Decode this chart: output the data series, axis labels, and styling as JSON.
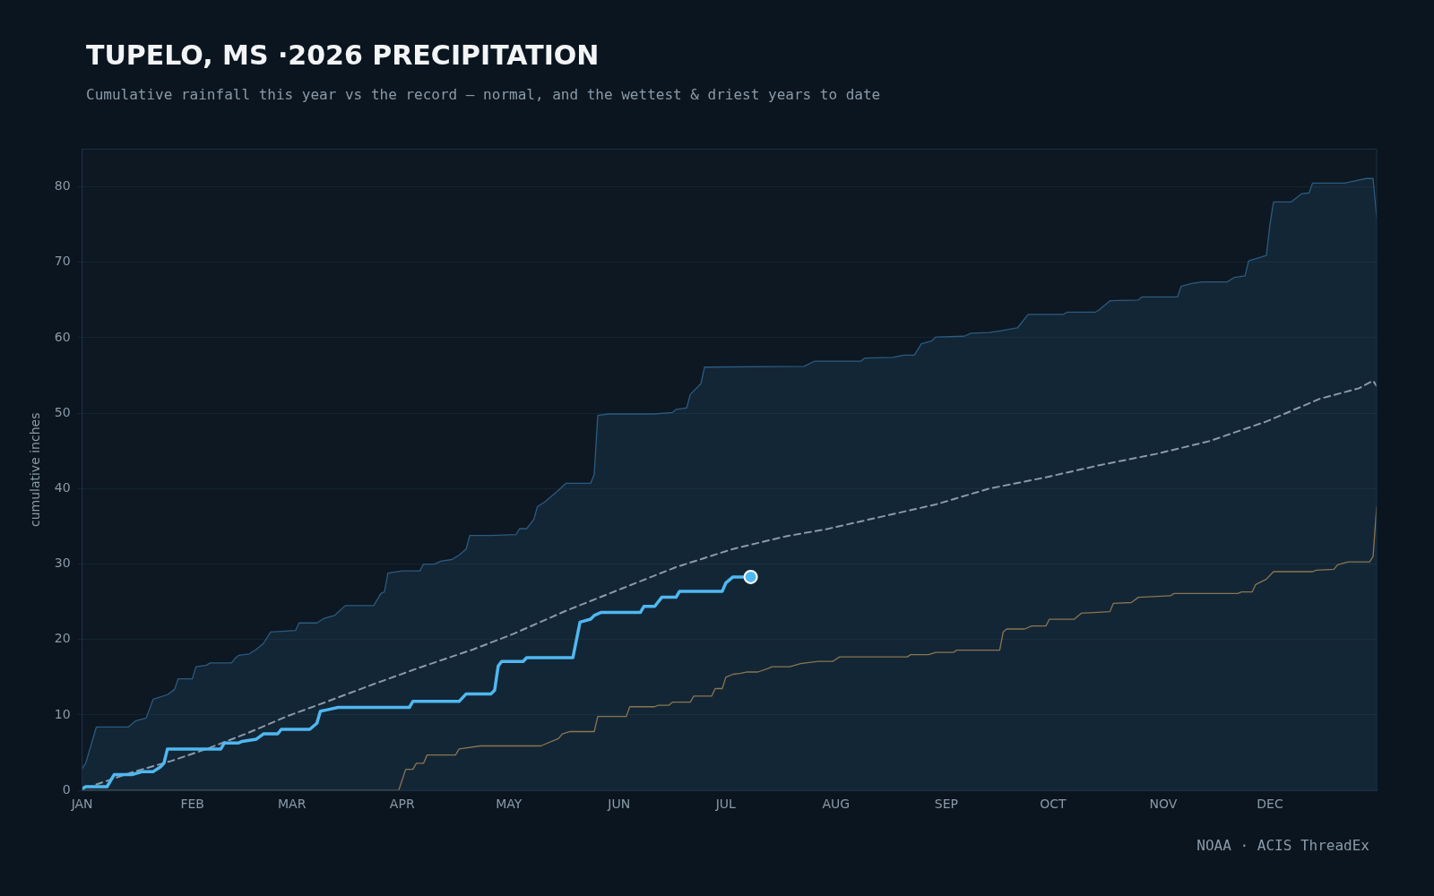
{
  "chart_data": {
    "type": "line",
    "title": "TUPELO, MS ·2026 PRECIPITATION",
    "subtitle": "Cumulative rainfall this year vs the record — normal, and the wettest & driest years to date",
    "ylabel": "cumulative inches",
    "annotations": [
      "NOAA · ACIS ThreadEx"
    ],
    "xlim": [
      "2026-01-01",
      "2026-12-31"
    ],
    "xticks": [
      {
        "value": "2026-01-01",
        "label": "JAN"
      },
      {
        "value": "2026-02-01",
        "label": "FEB"
      },
      {
        "value": "2026-03-01",
        "label": "MAR"
      },
      {
        "value": "2026-04-01",
        "label": "APR"
      },
      {
        "value": "2026-05-01",
        "label": "MAY"
      },
      {
        "value": "2026-06-01",
        "label": "JUN"
      },
      {
        "value": "2026-07-01",
        "label": "JUL"
      },
      {
        "value": "2026-08-01",
        "label": "AUG"
      },
      {
        "value": "2026-09-01",
        "label": "SEP"
      },
      {
        "value": "2026-10-01",
        "label": "OCT"
      },
      {
        "value": "2026-11-01",
        "label": "NOV"
      },
      {
        "value": "2026-12-01",
        "label": "DEC"
      }
    ],
    "ylim": [
      0,
      85
    ],
    "yticks": [
      0,
      10,
      20,
      30,
      40,
      50,
      60,
      70,
      80
    ],
    "grid": "y",
    "legend": false,
    "series": [
      {
        "type": "area",
        "color": "#2b5b80",
        "marker": "none",
        "x": [
          "2026-01-01",
          "2026-01-02",
          "2026-01-05",
          "2026-01-14",
          "2026-01-16",
          "2026-01-19",
          "2026-01-21",
          "2026-01-25",
          "2026-01-27",
          "2026-01-28",
          "2026-02-01",
          "2026-02-02",
          "2026-02-05",
          "2026-02-06",
          "2026-02-12",
          "2026-02-13",
          "2026-02-14",
          "2026-02-17",
          "2026-02-19",
          "2026-02-21",
          "2026-02-23",
          "2026-03-02",
          "2026-03-03",
          "2026-03-08",
          "2026-03-10",
          "2026-03-13",
          "2026-03-16",
          "2026-03-24",
          "2026-03-26",
          "2026-03-27",
          "2026-03-28",
          "2026-04-01",
          "2026-04-06",
          "2026-04-07",
          "2026-04-10",
          "2026-04-12",
          "2026-04-15",
          "2026-04-17",
          "2026-04-19",
          "2026-04-20",
          "2026-04-26",
          "2026-05-03",
          "2026-05-04",
          "2026-05-06",
          "2026-05-08",
          "2026-05-09",
          "2026-05-11",
          "2026-05-15",
          "2026-05-17",
          "2026-05-24",
          "2026-05-25",
          "2026-05-26",
          "2026-05-29",
          "2026-06-11",
          "2026-06-16",
          "2026-06-17",
          "2026-06-20",
          "2026-06-21",
          "2026-06-24",
          "2026-06-25",
          "2026-07-23",
          "2026-07-26",
          "2026-08-08",
          "2026-08-09",
          "2026-08-17",
          "2026-08-20",
          "2026-08-23",
          "2026-08-25",
          "2026-08-28",
          "2026-08-29",
          "2026-09-06",
          "2026-09-08",
          "2026-09-13",
          "2026-09-16",
          "2026-09-21",
          "2026-09-24",
          "2026-10-04",
          "2026-10-05",
          "2026-10-13",
          "2026-10-14",
          "2026-10-17",
          "2026-10-25",
          "2026-10-26",
          "2026-11-05",
          "2026-11-06",
          "2026-11-09",
          "2026-11-12",
          "2026-11-19",
          "2026-11-21",
          "2026-11-24",
          "2026-11-25",
          "2026-11-30",
          "2026-12-01",
          "2026-12-02",
          "2026-12-07",
          "2026-12-10",
          "2026-12-12",
          "2026-12-13",
          "2026-12-22",
          "2026-12-24",
          "2026-12-28",
          "2026-12-30",
          "2026-12-31"
        ],
        "values": [
          2.9,
          3.6,
          8.4,
          8.4,
          9.2,
          9.6,
          12.1,
          12.7,
          13.4,
          14.8,
          14.8,
          16.4,
          16.6,
          16.9,
          16.9,
          17.5,
          17.9,
          18.1,
          18.7,
          19.5,
          21.0,
          21.2,
          22.2,
          22.2,
          22.8,
          23.2,
          24.5,
          24.5,
          26.1,
          26.3,
          28.8,
          29.1,
          29.1,
          30.0,
          30.0,
          30.4,
          30.6,
          31.2,
          32.0,
          33.8,
          33.8,
          33.9,
          34.7,
          34.7,
          35.9,
          37.6,
          38.2,
          39.8,
          40.7,
          40.7,
          41.9,
          49.7,
          49.9,
          49.9,
          50.1,
          50.5,
          50.7,
          52.5,
          53.9,
          56.1,
          56.2,
          56.9,
          56.9,
          57.3,
          57.4,
          57.7,
          57.7,
          59.2,
          59.6,
          60.1,
          60.2,
          60.6,
          60.7,
          60.9,
          61.3,
          63.1,
          63.1,
          63.4,
          63.4,
          63.7,
          64.9,
          65.0,
          65.4,
          65.4,
          66.8,
          67.2,
          67.4,
          67.4,
          68.0,
          68.2,
          70.2,
          70.9,
          75.0,
          78.0,
          78.0,
          79.1,
          79.2,
          80.5,
          80.5,
          80.7,
          81.1,
          81.1,
          76.0
        ]
      },
      {
        "type": "line",
        "color": "#8a7550",
        "marker": "none",
        "x": [
          "2026-01-01",
          "2026-03-31",
          "2026-04-02",
          "2026-04-04",
          "2026-04-05",
          "2026-04-07",
          "2026-04-08",
          "2026-04-16",
          "2026-04-17",
          "2026-04-23",
          "2026-05-10",
          "2026-05-15",
          "2026-05-16",
          "2026-05-18",
          "2026-05-25",
          "2026-05-26",
          "2026-06-03",
          "2026-06-04",
          "2026-06-11",
          "2026-06-12",
          "2026-06-15",
          "2026-06-16",
          "2026-06-21",
          "2026-06-22",
          "2026-06-27",
          "2026-06-28",
          "2026-06-30",
          "2026-07-01",
          "2026-07-03",
          "2026-07-05",
          "2026-07-07",
          "2026-07-10",
          "2026-07-13",
          "2026-07-14",
          "2026-07-19",
          "2026-07-22",
          "2026-07-27",
          "2026-07-31",
          "2026-08-02",
          "2026-08-21",
          "2026-08-22",
          "2026-08-27",
          "2026-08-29",
          "2026-09-03",
          "2026-09-04",
          "2026-09-16",
          "2026-09-17",
          "2026-09-18",
          "2026-09-23",
          "2026-09-25",
          "2026-09-29",
          "2026-09-30",
          "2026-10-07",
          "2026-10-09",
          "2026-10-17",
          "2026-10-18",
          "2026-10-23",
          "2026-10-25",
          "2026-11-03",
          "2026-11-04",
          "2026-11-22",
          "2026-11-23",
          "2026-11-26",
          "2026-11-27",
          "2026-11-30",
          "2026-12-02",
          "2026-12-13",
          "2026-12-14",
          "2026-12-19",
          "2026-12-20",
          "2026-12-23",
          "2026-12-29",
          "2026-12-30",
          "2026-12-31"
        ],
        "values": [
          0,
          0,
          2.8,
          2.8,
          3.6,
          3.6,
          4.7,
          4.7,
          5.5,
          5.9,
          5.9,
          6.9,
          7.5,
          7.8,
          7.8,
          9.8,
          9.8,
          11.1,
          11.1,
          11.3,
          11.3,
          11.7,
          11.7,
          12.5,
          12.5,
          13.5,
          13.5,
          15.0,
          15.4,
          15.5,
          15.7,
          15.7,
          16.2,
          16.4,
          16.4,
          16.8,
          17.1,
          17.1,
          17.7,
          17.7,
          18.0,
          18.0,
          18.3,
          18.3,
          18.6,
          18.6,
          21.0,
          21.4,
          21.4,
          21.8,
          21.8,
          22.7,
          22.7,
          23.5,
          23.7,
          24.8,
          24.9,
          25.6,
          25.8,
          26.1,
          26.1,
          26.3,
          26.3,
          27.3,
          28.0,
          29.0,
          29.0,
          29.2,
          29.3,
          29.9,
          30.3,
          30.3,
          31.0,
          37.6
        ]
      },
      {
        "type": "line",
        "color": "#8a9aa8",
        "marker": "none",
        "line_style": "dashed",
        "x": [
          "2026-01-05",
          "2026-01-15",
          "2026-01-26",
          "2026-02-05",
          "2026-02-16",
          "2026-02-28",
          "2026-03-11",
          "2026-03-24",
          "2026-04-06",
          "2026-04-21",
          "2026-05-02",
          "2026-05-17",
          "2026-06-02",
          "2026-06-17",
          "2026-07-03",
          "2026-07-18",
          "2026-07-29",
          "2026-08-13",
          "2026-08-29",
          "2026-09-13",
          "2026-09-29",
          "2026-10-14",
          "2026-10-30",
          "2026-11-14",
          "2026-11-30",
          "2026-12-15",
          "2026-12-26",
          "2026-12-30",
          "2026-12-31"
        ],
        "values": [
          0.8,
          2.4,
          3.9,
          5.5,
          7.5,
          9.9,
          11.8,
          14.1,
          16.3,
          18.7,
          20.7,
          23.8,
          26.8,
          29.6,
          32.0,
          33.7,
          34.6,
          36.2,
          37.9,
          40.0,
          41.5,
          43.1,
          44.6,
          46.3,
          48.9,
          51.9,
          53.3,
          54.3,
          53.6
        ]
      },
      {
        "type": "line",
        "color": "#4fb8f0",
        "marker": "none",
        "x": [
          "2026-01-01",
          "2026-01-02",
          "2026-01-08",
          "2026-01-10",
          "2026-01-15",
          "2026-01-18",
          "2026-01-21",
          "2026-01-23",
          "2026-01-24",
          "2026-01-25",
          "2026-02-09",
          "2026-02-10",
          "2026-02-14",
          "2026-02-15",
          "2026-02-19",
          "2026-02-21",
          "2026-02-25",
          "2026-02-26",
          "2026-03-06",
          "2026-03-08",
          "2026-03-09",
          "2026-03-11",
          "2026-03-14",
          "2026-04-03",
          "2026-04-04",
          "2026-04-17",
          "2026-04-19",
          "2026-04-26",
          "2026-04-27",
          "2026-04-28",
          "2026-04-29",
          "2026-05-05",
          "2026-05-06",
          "2026-05-19",
          "2026-05-21",
          "2026-05-24",
          "2026-05-25",
          "2026-05-27",
          "2026-06-07",
          "2026-06-08",
          "2026-06-11",
          "2026-06-13",
          "2026-06-17",
          "2026-06-18",
          "2026-06-30",
          "2026-07-01",
          "2026-07-03",
          "2026-07-08"
        ],
        "values": [
          0.2,
          0.5,
          0.5,
          2.1,
          2.1,
          2.5,
          2.5,
          3.1,
          3.6,
          5.5,
          5.5,
          6.3,
          6.3,
          6.5,
          6.8,
          7.5,
          7.5,
          8.1,
          8.1,
          8.9,
          10.5,
          10.7,
          11.0,
          11.0,
          11.8,
          11.8,
          12.8,
          12.8,
          13.3,
          16.5,
          17.1,
          17.1,
          17.6,
          17.6,
          22.3,
          22.7,
          23.2,
          23.6,
          23.6,
          24.4,
          24.4,
          25.6,
          25.6,
          26.4,
          26.4,
          27.5,
          28.3,
          28.3
        ]
      },
      {
        "type": "scatter",
        "color": "#4fb8f0",
        "marker": "circle",
        "x": [
          "2026-07-08"
        ],
        "values": [
          28.3
        ]
      }
    ]
  }
}
